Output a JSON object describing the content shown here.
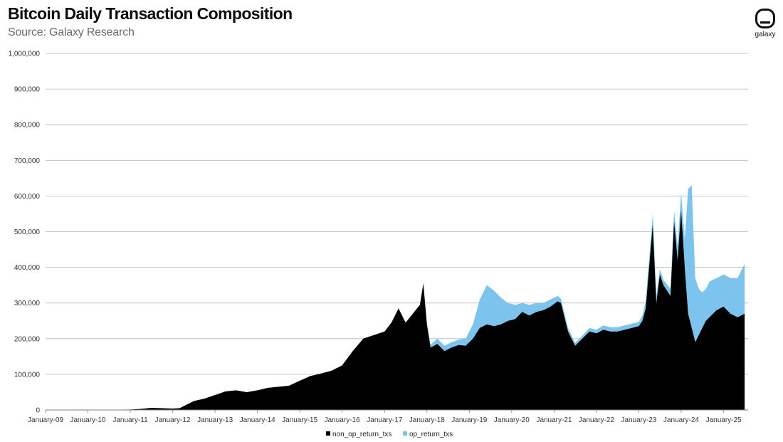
{
  "header": {
    "title": "Bitcoin Daily Transaction Composition",
    "subtitle": "Source: Galaxy Research"
  },
  "logo": {
    "text": "galaxy",
    "icon": "galaxy-logo-icon"
  },
  "colors": {
    "non_op_return": "#000000",
    "op_return": "#7cc4ee",
    "grid": "#b4b4b4",
    "axis": "#808080"
  },
  "chart_data": {
    "type": "area",
    "stacked": true,
    "title": "Bitcoin Daily Transaction Composition",
    "subtitle": "Source: Galaxy Research",
    "xlabel": "",
    "ylabel": "",
    "ylim": [
      0,
      1000000
    ],
    "y_ticks": [
      0,
      100000,
      200000,
      300000,
      400000,
      500000,
      600000,
      700000,
      800000,
      900000,
      1000000
    ],
    "y_tick_labels": [
      "0",
      "100,000",
      "200,000",
      "300,000",
      "400,000",
      "500,000",
      "600,000",
      "700,000",
      "800,000",
      "900,000",
      "1,000,000"
    ],
    "x_range": [
      "2009-01-01",
      "2025-07-31"
    ],
    "x_tick_labels": [
      "January-09",
      "January-10",
      "January-11",
      "January-12",
      "January-13",
      "January-14",
      "January-15",
      "January-16",
      "January-17",
      "January-18",
      "January-19",
      "January-20",
      "January-21",
      "January-22",
      "January-23",
      "January-24",
      "January-25"
    ],
    "grid": true,
    "legend_position": "bottom-center",
    "x": [
      "2009-01",
      "2009-07",
      "2010-01",
      "2010-07",
      "2011-01",
      "2011-04",
      "2011-07",
      "2011-10",
      "2012-01",
      "2012-03",
      "2012-05",
      "2012-07",
      "2012-10",
      "2013-01",
      "2013-04",
      "2013-07",
      "2013-10",
      "2014-01",
      "2014-04",
      "2014-07",
      "2014-10",
      "2015-01",
      "2015-04",
      "2015-07",
      "2015-10",
      "2016-01",
      "2016-04",
      "2016-07",
      "2016-10",
      "2017-01",
      "2017-03",
      "2017-05",
      "2017-07",
      "2017-09",
      "2017-11",
      "2017-12",
      "2018-01",
      "2018-02",
      "2018-04",
      "2018-06",
      "2018-08",
      "2018-10",
      "2018-12",
      "2019-02",
      "2019-04",
      "2019-06",
      "2019-08",
      "2019-10",
      "2019-12",
      "2020-02",
      "2020-04",
      "2020-06",
      "2020-08",
      "2020-10",
      "2020-12",
      "2021-02",
      "2021-03",
      "2021-05",
      "2021-07",
      "2021-09",
      "2021-11",
      "2022-01",
      "2022-03",
      "2022-05",
      "2022-07",
      "2022-09",
      "2022-11",
      "2023-01",
      "2023-02",
      "2023-03",
      "2023-05",
      "2023-06",
      "2023-07",
      "2023-08",
      "2023-10",
      "2023-11",
      "2023-12",
      "2024-01",
      "2024-02",
      "2024-03",
      "2024-04",
      "2024-05",
      "2024-06",
      "2024-07",
      "2024-08",
      "2024-09",
      "2024-11",
      "2025-01",
      "2025-03",
      "2025-05",
      "2025-07"
    ],
    "series": [
      {
        "name": "non_op_return_txs",
        "values": [
          0,
          100,
          200,
          400,
          1200,
          3000,
          6000,
          5000,
          4000,
          5000,
          15000,
          25000,
          32000,
          42000,
          52000,
          55000,
          50000,
          55000,
          62000,
          65000,
          68000,
          82000,
          95000,
          102000,
          110000,
          125000,
          165000,
          200000,
          210000,
          220000,
          245000,
          285000,
          245000,
          270000,
          295000,
          355000,
          240000,
          175000,
          185000,
          165000,
          175000,
          182000,
          180000,
          200000,
          230000,
          240000,
          235000,
          240000,
          250000,
          255000,
          275000,
          265000,
          275000,
          280000,
          290000,
          305000,
          300000,
          220000,
          180000,
          200000,
          220000,
          215000,
          225000,
          220000,
          220000,
          225000,
          230000,
          235000,
          250000,
          285000,
          520000,
          300000,
          380000,
          350000,
          320000,
          530000,
          420000,
          560000,
          400000,
          270000,
          230000,
          190000,
          210000,
          230000,
          250000,
          260000,
          280000,
          290000,
          270000,
          260000,
          270000
        ]
      },
      {
        "name": "op_return_txs",
        "values": [
          0,
          0,
          0,
          0,
          0,
          0,
          0,
          0,
          0,
          0,
          0,
          0,
          0,
          0,
          0,
          0,
          0,
          0,
          0,
          0,
          0,
          0,
          0,
          0,
          0,
          0,
          0,
          0,
          0,
          0,
          0,
          0,
          0,
          0,
          0,
          0,
          0,
          8000,
          15000,
          15000,
          15000,
          15000,
          20000,
          40000,
          80000,
          110000,
          100000,
          75000,
          50000,
          40000,
          25000,
          30000,
          25000,
          20000,
          20000,
          15000,
          12000,
          10000,
          8000,
          8000,
          10000,
          10000,
          12000,
          12000,
          12000,
          12000,
          12000,
          12000,
          15000,
          20000,
          30000,
          20000,
          15000,
          15000,
          20000,
          30000,
          40000,
          50000,
          80000,
          350000,
          400000,
          180000,
          130000,
          100000,
          90000,
          100000,
          90000,
          90000,
          100000,
          110000,
          140000
        ]
      }
    ]
  },
  "legend": {
    "items": [
      {
        "label": "non_op_return_txs",
        "color": "#000000"
      },
      {
        "label": "op_return_txs",
        "color": "#7cc4ee"
      }
    ]
  }
}
